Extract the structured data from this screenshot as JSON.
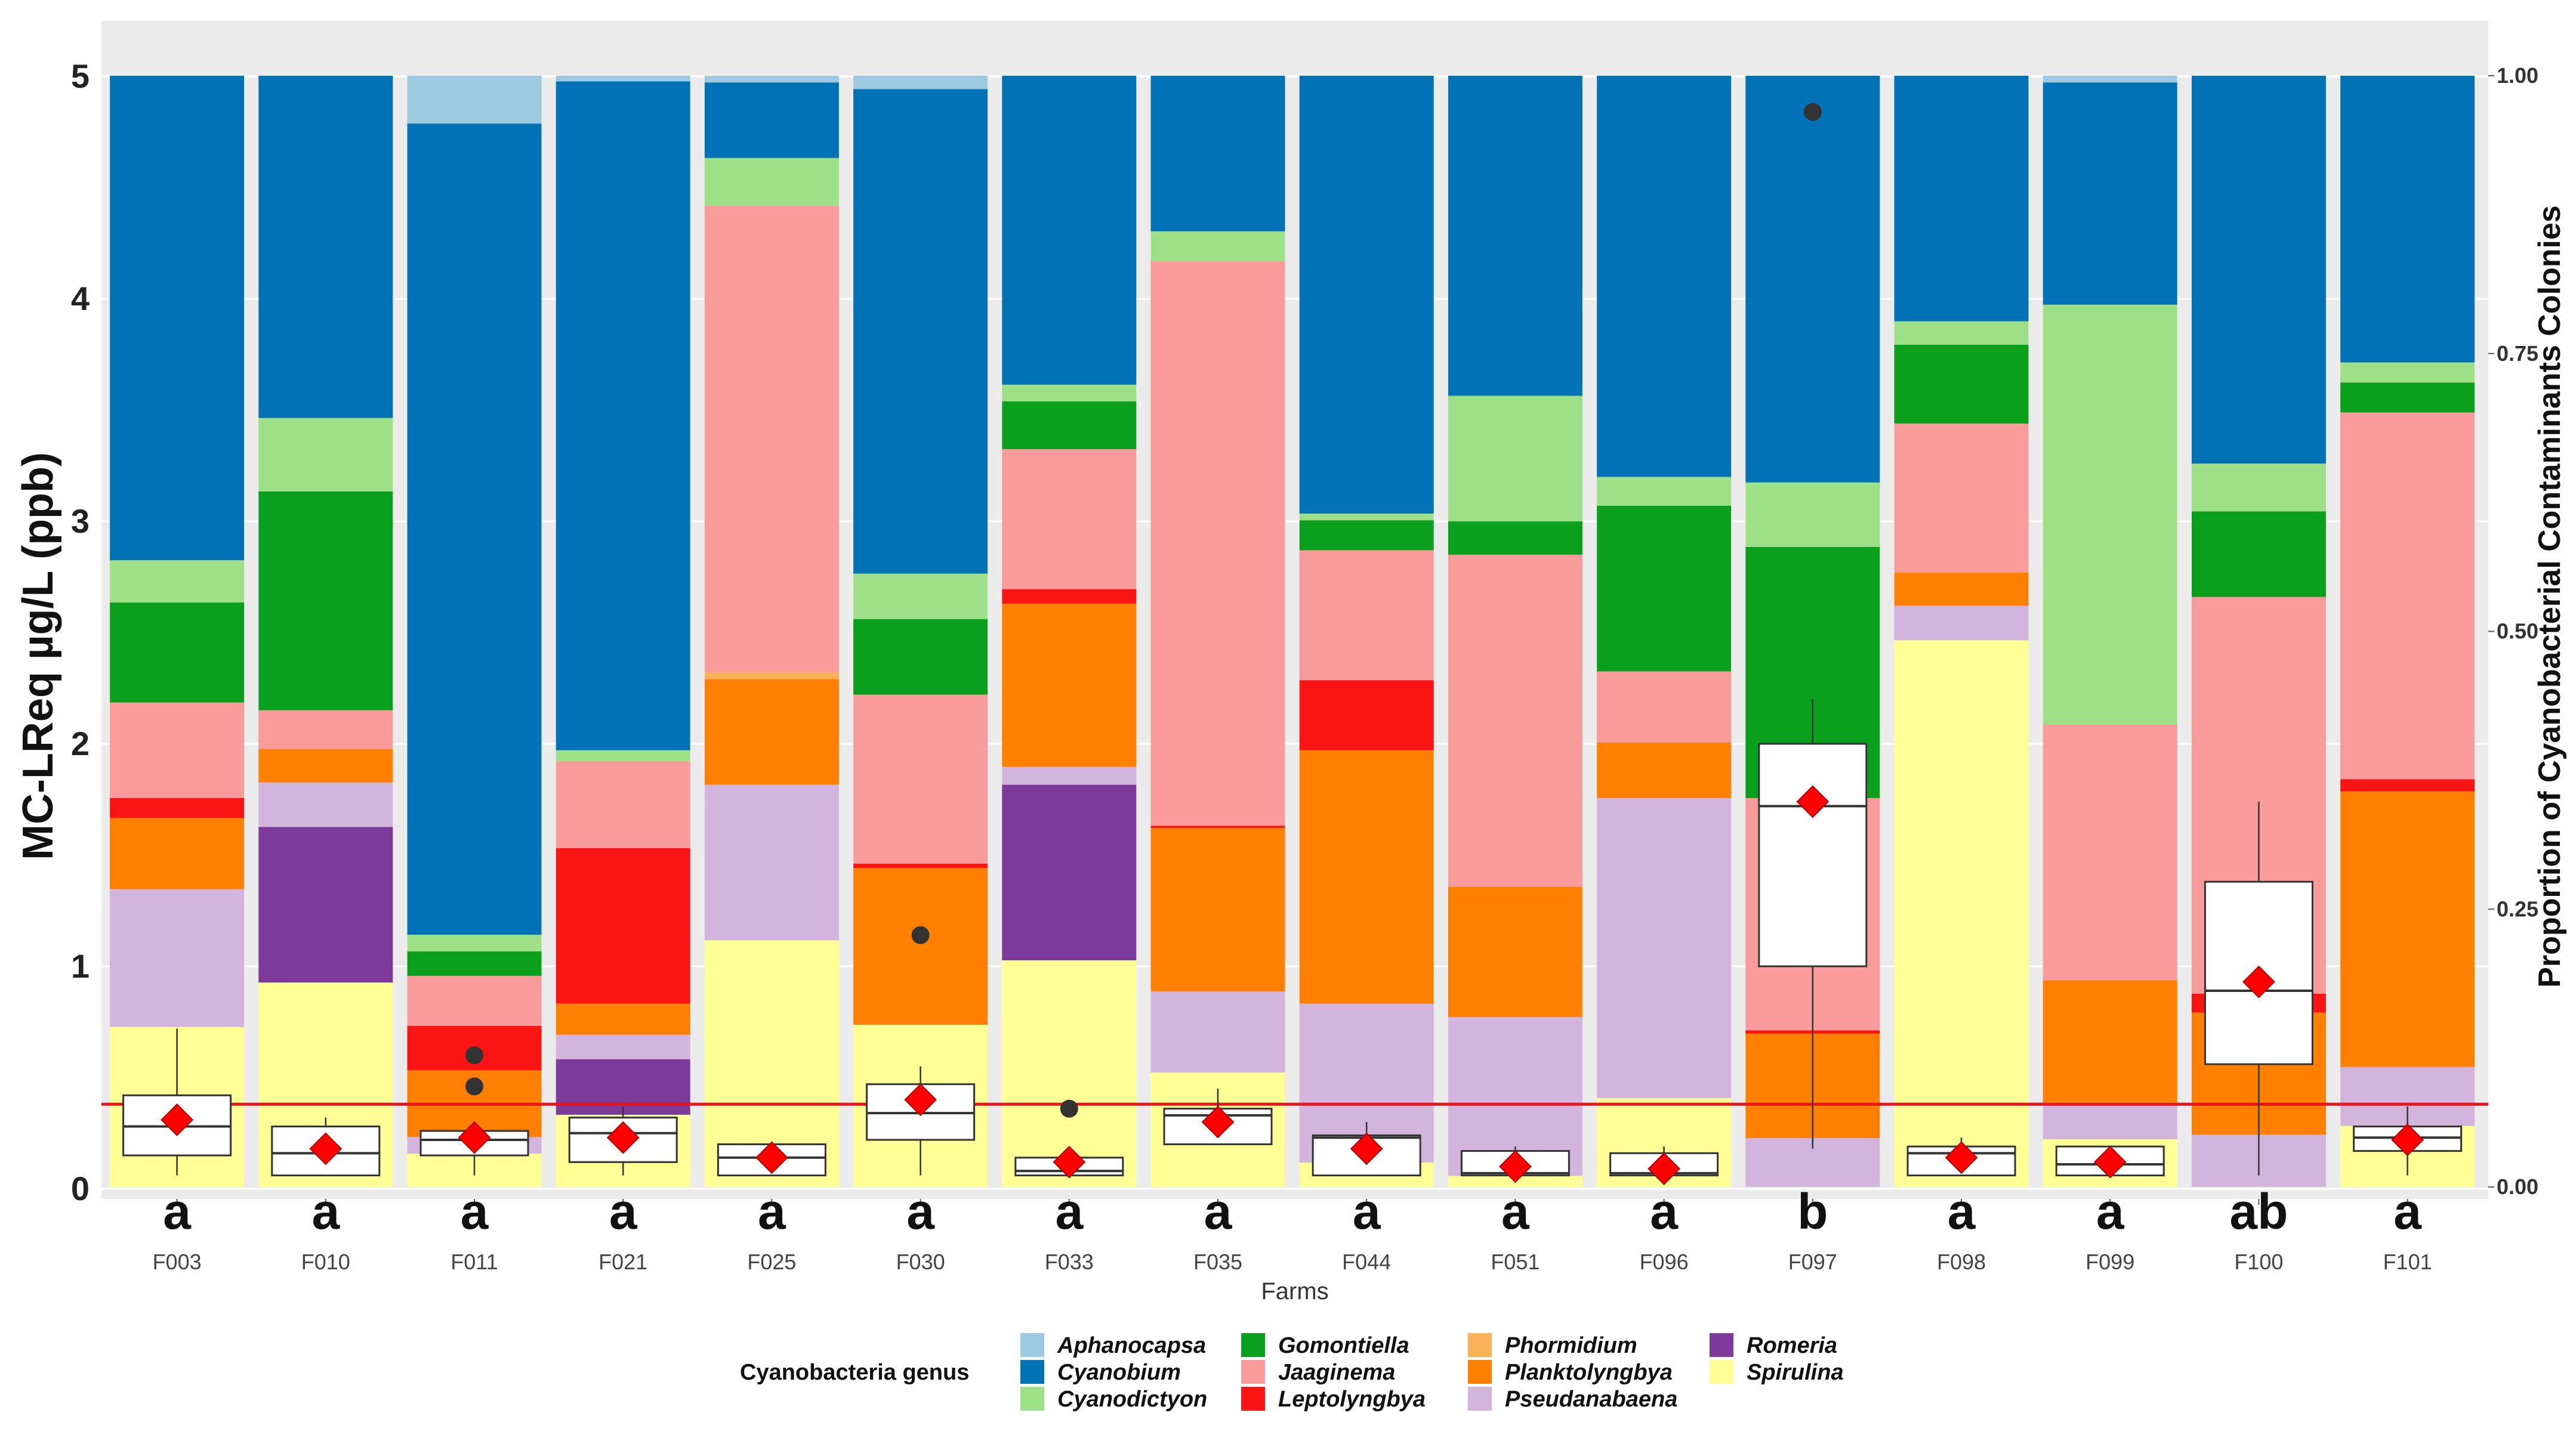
{
  "chart_data": {
    "type": "stacked-bar-with-boxplot",
    "ylabel": "MC-LReq µg/L (ppb)",
    "y2label": "Proportion of Cyanobacterial Contaminants Colonies",
    "xlabel": "Farms",
    "ylim": [
      0,
      5
    ],
    "y_ticks": [
      "0",
      "1",
      "2",
      "3",
      "4",
      "5"
    ],
    "y2lim": [
      0,
      1
    ],
    "y2_ticks": [
      "0.00",
      "0.25",
      "0.50",
      "0.75",
      "1.00"
    ],
    "reference_line_y": 0.38,
    "reference_line_color": "#e8141b",
    "legend": {
      "title": "Cyanobacteria genus",
      "position": "bottom",
      "entries": [
        {
          "name": "Aphanocapsa",
          "color": "#9ecae1"
        },
        {
          "name": "Cyanobium",
          "color": "#0072b5"
        },
        {
          "name": "Cyanodictyon",
          "color": "#9ee087"
        },
        {
          "name": "Gomontiella",
          "color": "#0aa01e"
        },
        {
          "name": "Jaaginema",
          "color": "#fa9b9b"
        },
        {
          "name": "Leptolyngbya",
          "color": "#fa1414"
        },
        {
          "name": "Phormidium",
          "color": "#fbb155"
        },
        {
          "name": "Planktolyngbya",
          "color": "#ff8000"
        },
        {
          "name": "Pseudanabaena",
          "color": "#d2b4dc"
        },
        {
          "name": "Romeria",
          "color": "#7d3a9a"
        },
        {
          "name": "Spirulina",
          "color": "#ffff96"
        }
      ]
    },
    "genus_order_bottom_to_top": [
      "Spirulina",
      "Romeria",
      "Pseudanabaena",
      "Planktolyngbya",
      "Phormidium",
      "Leptolyngbya",
      "Jaaginema",
      "Gomontiella",
      "Cyanodictyon",
      "Cyanobium",
      "Aphanocapsa"
    ],
    "farms": [
      {
        "farm": "F003",
        "letter": "a",
        "proportions": {
          "Spirulina": 0.144,
          "Romeria": 0,
          "Pseudanabaena": 0.124,
          "Planktolyngbya": 0.064,
          "Phormidium": 0,
          "Leptolyngbya": 0.018,
          "Jaaginema": 0.086,
          "Gomontiella": 0.09,
          "Cyanodictyon": 0.038,
          "Cyanobium": 0.436,
          "Aphanocapsa": 0
        },
        "box": {
          "q1": 0.15,
          "median": 0.28,
          "q3": 0.42,
          "whisker_low": 0.06,
          "whisker_high": 0.72,
          "mean": 0.31,
          "outliers": []
        }
      },
      {
        "farm": "F010",
        "letter": "a",
        "proportions": {
          "Spirulina": 0.184,
          "Romeria": 0.14,
          "Pseudanabaena": 0.04,
          "Planktolyngbya": 0.03,
          "Phormidium": 0,
          "Leptolyngbya": 0,
          "Jaaginema": 0.035,
          "Gomontiella": 0.197,
          "Cyanodictyon": 0.066,
          "Cyanobium": 0.308,
          "Aphanocapsa": 0
        },
        "box": {
          "q1": 0.06,
          "median": 0.16,
          "q3": 0.28,
          "whisker_low": 0.06,
          "whisker_high": 0.32,
          "mean": 0.18,
          "outliers": []
        }
      },
      {
        "farm": "F011",
        "letter": "a",
        "proportions": {
          "Spirulina": 0.03,
          "Romeria": 0,
          "Pseudanabaena": 0.015,
          "Planktolyngbya": 0.06,
          "Phormidium": 0,
          "Leptolyngbya": 0.04,
          "Jaaginema": 0.045,
          "Gomontiella": 0.022,
          "Cyanodictyon": 0.015,
          "Cyanobium": 0.73,
          "Aphanocapsa": 0.043
        },
        "box": {
          "q1": 0.15,
          "median": 0.22,
          "q3": 0.26,
          "whisker_low": 0.06,
          "whisker_high": 0.28,
          "mean": 0.23,
          "outliers": [
            0.46,
            0.6
          ]
        }
      },
      {
        "farm": "F021",
        "letter": "a",
        "proportions": {
          "Spirulina": 0.065,
          "Romeria": 0.05,
          "Pseudanabaena": 0.022,
          "Planktolyngbya": 0.028,
          "Phormidium": 0,
          "Leptolyngbya": 0.14,
          "Jaaginema": 0.078,
          "Gomontiella": 0,
          "Cyanodictyon": 0.01,
          "Cyanobium": 0.602,
          "Aphanocapsa": 0.005
        },
        "box": {
          "q1": 0.12,
          "median": 0.25,
          "q3": 0.32,
          "whisker_low": 0.06,
          "whisker_high": 0.37,
          "mean": 0.23,
          "outliers": []
        }
      },
      {
        "farm": "F025",
        "letter": "a",
        "proportions": {
          "Spirulina": 0.222,
          "Romeria": 0,
          "Pseudanabaena": 0.14,
          "Planktolyngbya": 0.095,
          "Phormidium": 0.006,
          "Leptolyngbya": 0,
          "Jaaginema": 0.42,
          "Gomontiella": 0,
          "Cyanodictyon": 0.043,
          "Cyanobium": 0.068,
          "Aphanocapsa": 0.006
        },
        "box": {
          "q1": 0.06,
          "median": 0.14,
          "q3": 0.2,
          "whisker_low": 0.06,
          "whisker_high": 0.2,
          "mean": 0.14,
          "outliers": []
        }
      },
      {
        "farm": "F030",
        "letter": "a",
        "proportions": {
          "Spirulina": 0.146,
          "Romeria": 0,
          "Pseudanabaena": 0,
          "Planktolyngbya": 0.141,
          "Phormidium": 0,
          "Leptolyngbya": 0.004,
          "Jaaginema": 0.152,
          "Gomontiella": 0.068,
          "Cyanodictyon": 0.041,
          "Cyanobium": 0.436,
          "Aphanocapsa": 0.012
        },
        "box": {
          "q1": 0.22,
          "median": 0.34,
          "q3": 0.47,
          "whisker_low": 0.06,
          "whisker_high": 0.55,
          "mean": 0.4,
          "outliers": [
            1.14
          ]
        }
      },
      {
        "farm": "F033",
        "letter": "a",
        "proportions": {
          "Spirulina": 0.204,
          "Romeria": 0.158,
          "Pseudanabaena": 0.016,
          "Planktolyngbya": 0.147,
          "Phormidium": 0,
          "Leptolyngbya": 0.013,
          "Jaaginema": 0.126,
          "Gomontiella": 0.043,
          "Cyanodictyon": 0.015,
          "Cyanobium": 0.278,
          "Aphanocapsa": 0
        },
        "box": {
          "q1": 0.06,
          "median": 0.08,
          "q3": 0.14,
          "whisker_low": 0.06,
          "whisker_high": 0.14,
          "mean": 0.12,
          "outliers": [
            0.36
          ]
        }
      },
      {
        "farm": "F035",
        "letter": "a",
        "proportions": {
          "Spirulina": 0.103,
          "Romeria": 0,
          "Pseudanabaena": 0.073,
          "Planktolyngbya": 0.147,
          "Phormidium": 0,
          "Leptolyngbya": 0.002,
          "Jaaginema": 0.508,
          "Gomontiella": 0,
          "Cyanodictyon": 0.027,
          "Cyanobium": 0.14,
          "Aphanocapsa": 0
        },
        "box": {
          "q1": 0.2,
          "median": 0.33,
          "q3": 0.36,
          "whisker_low": 0.2,
          "whisker_high": 0.45,
          "mean": 0.3,
          "outliers": []
        }
      },
      {
        "farm": "F044",
        "letter": "a",
        "proportions": {
          "Spirulina": 0.022,
          "Romeria": 0,
          "Pseudanabaena": 0.143,
          "Planktolyngbya": 0.228,
          "Phormidium": 0,
          "Leptolyngbya": 0.063,
          "Jaaginema": 0.117,
          "Gomontiella": 0.027,
          "Cyanodictyon": 0.006,
          "Cyanobium": 0.394,
          "Aphanocapsa": 0
        },
        "box": {
          "q1": 0.06,
          "median": 0.23,
          "q3": 0.24,
          "whisker_low": 0.06,
          "whisker_high": 0.3,
          "mean": 0.18,
          "outliers": []
        }
      },
      {
        "farm": "F051",
        "letter": "a",
        "proportions": {
          "Spirulina": 0.01,
          "Romeria": 0,
          "Pseudanabaena": 0.143,
          "Planktolyngbya": 0.117,
          "Phormidium": 0,
          "Leptolyngbya": 0,
          "Jaaginema": 0.299,
          "Gomontiella": 0.03,
          "Cyanodictyon": 0.113,
          "Cyanobium": 0.288,
          "Aphanocapsa": 0
        },
        "box": {
          "q1": 0.06,
          "median": 0.07,
          "q3": 0.17,
          "whisker_low": 0.06,
          "whisker_high": 0.19,
          "mean": 0.1,
          "outliers": []
        }
      },
      {
        "farm": "F096",
        "letter": "a",
        "proportions": {
          "Spirulina": 0.08,
          "Romeria": 0,
          "Pseudanabaena": 0.27,
          "Planktolyngbya": 0.05,
          "Phormidium": 0,
          "Leptolyngbya": 0,
          "Jaaginema": 0.064,
          "Gomontiella": 0.149,
          "Cyanodictyon": 0.026,
          "Cyanobium": 0.361,
          "Aphanocapsa": 0
        },
        "box": {
          "q1": 0.06,
          "median": 0.07,
          "q3": 0.16,
          "whisker_low": 0.06,
          "whisker_high": 0.19,
          "mean": 0.09,
          "outliers": []
        }
      },
      {
        "farm": "F097",
        "letter": "b",
        "proportions": {
          "Spirulina": 0,
          "Romeria": 0,
          "Pseudanabaena": 0.044,
          "Planktolyngbya": 0.094,
          "Phormidium": 0,
          "Leptolyngbya": 0.003,
          "Jaaginema": 0.209,
          "Gomontiella": 0.226,
          "Cyanodictyon": 0.058,
          "Cyanobium": 0.366,
          "Aphanocapsa": 0
        },
        "box": {
          "q1": 1.0,
          "median": 1.72,
          "q3": 2.0,
          "whisker_low": 0.18,
          "whisker_high": 2.2,
          "mean": 1.74,
          "outliers": [
            4.84
          ]
        }
      },
      {
        "farm": "F098",
        "letter": "a",
        "proportions": {
          "Spirulina": 0.492,
          "Romeria": 0,
          "Pseudanabaena": 0.031,
          "Planktolyngbya": 0.03,
          "Phormidium": 0,
          "Leptolyngbya": 0,
          "Jaaginema": 0.134,
          "Gomontiella": 0.071,
          "Cyanodictyon": 0.021,
          "Cyanobium": 0.221,
          "Aphanocapsa": 0
        },
        "box": {
          "q1": 0.06,
          "median": 0.16,
          "q3": 0.19,
          "whisker_low": 0.06,
          "whisker_high": 0.23,
          "mean": 0.14,
          "outliers": []
        }
      },
      {
        "farm": "F099",
        "letter": "a",
        "proportions": {
          "Spirulina": 0.043,
          "Romeria": 0,
          "Pseudanabaena": 0.033,
          "Planktolyngbya": 0.11,
          "Phormidium": 0,
          "Leptolyngbya": 0,
          "Jaaginema": 0.23,
          "Gomontiella": 0,
          "Cyanodictyon": 0.378,
          "Cyanobium": 0.2,
          "Aphanocapsa": 0.006
        },
        "box": {
          "q1": 0.06,
          "median": 0.11,
          "q3": 0.19,
          "whisker_low": 0.06,
          "whisker_high": 0.19,
          "mean": 0.12,
          "outliers": []
        }
      },
      {
        "farm": "F100",
        "letter": "ab",
        "proportions": {
          "Spirulina": 0,
          "Romeria": 0,
          "Pseudanabaena": 0.047,
          "Planktolyngbya": 0.11,
          "Phormidium": 0,
          "Leptolyngbya": 0.017,
          "Jaaginema": 0.357,
          "Gomontiella": 0.077,
          "Cyanodictyon": 0.043,
          "Cyanobium": 0.349,
          "Aphanocapsa": 0
        },
        "box": {
          "q1": 0.56,
          "median": 0.89,
          "q3": 1.38,
          "whisker_low": 0.06,
          "whisker_high": 1.74,
          "mean": 0.93,
          "outliers": []
        }
      },
      {
        "farm": "F101",
        "letter": "a",
        "proportions": {
          "Spirulina": 0.055,
          "Romeria": 0,
          "Pseudanabaena": 0.053,
          "Planktolyngbya": 0.248,
          "Phormidium": 0,
          "Leptolyngbya": 0.011,
          "Jaaginema": 0.33,
          "Gomontiella": 0.027,
          "Cyanodictyon": 0.018,
          "Cyanobium": 0.258,
          "Aphanocapsa": 0
        },
        "box": {
          "q1": 0.17,
          "median": 0.23,
          "q3": 0.28,
          "whisker_low": 0.06,
          "whisker_high": 0.37,
          "mean": 0.22,
          "outliers": []
        }
      }
    ]
  }
}
